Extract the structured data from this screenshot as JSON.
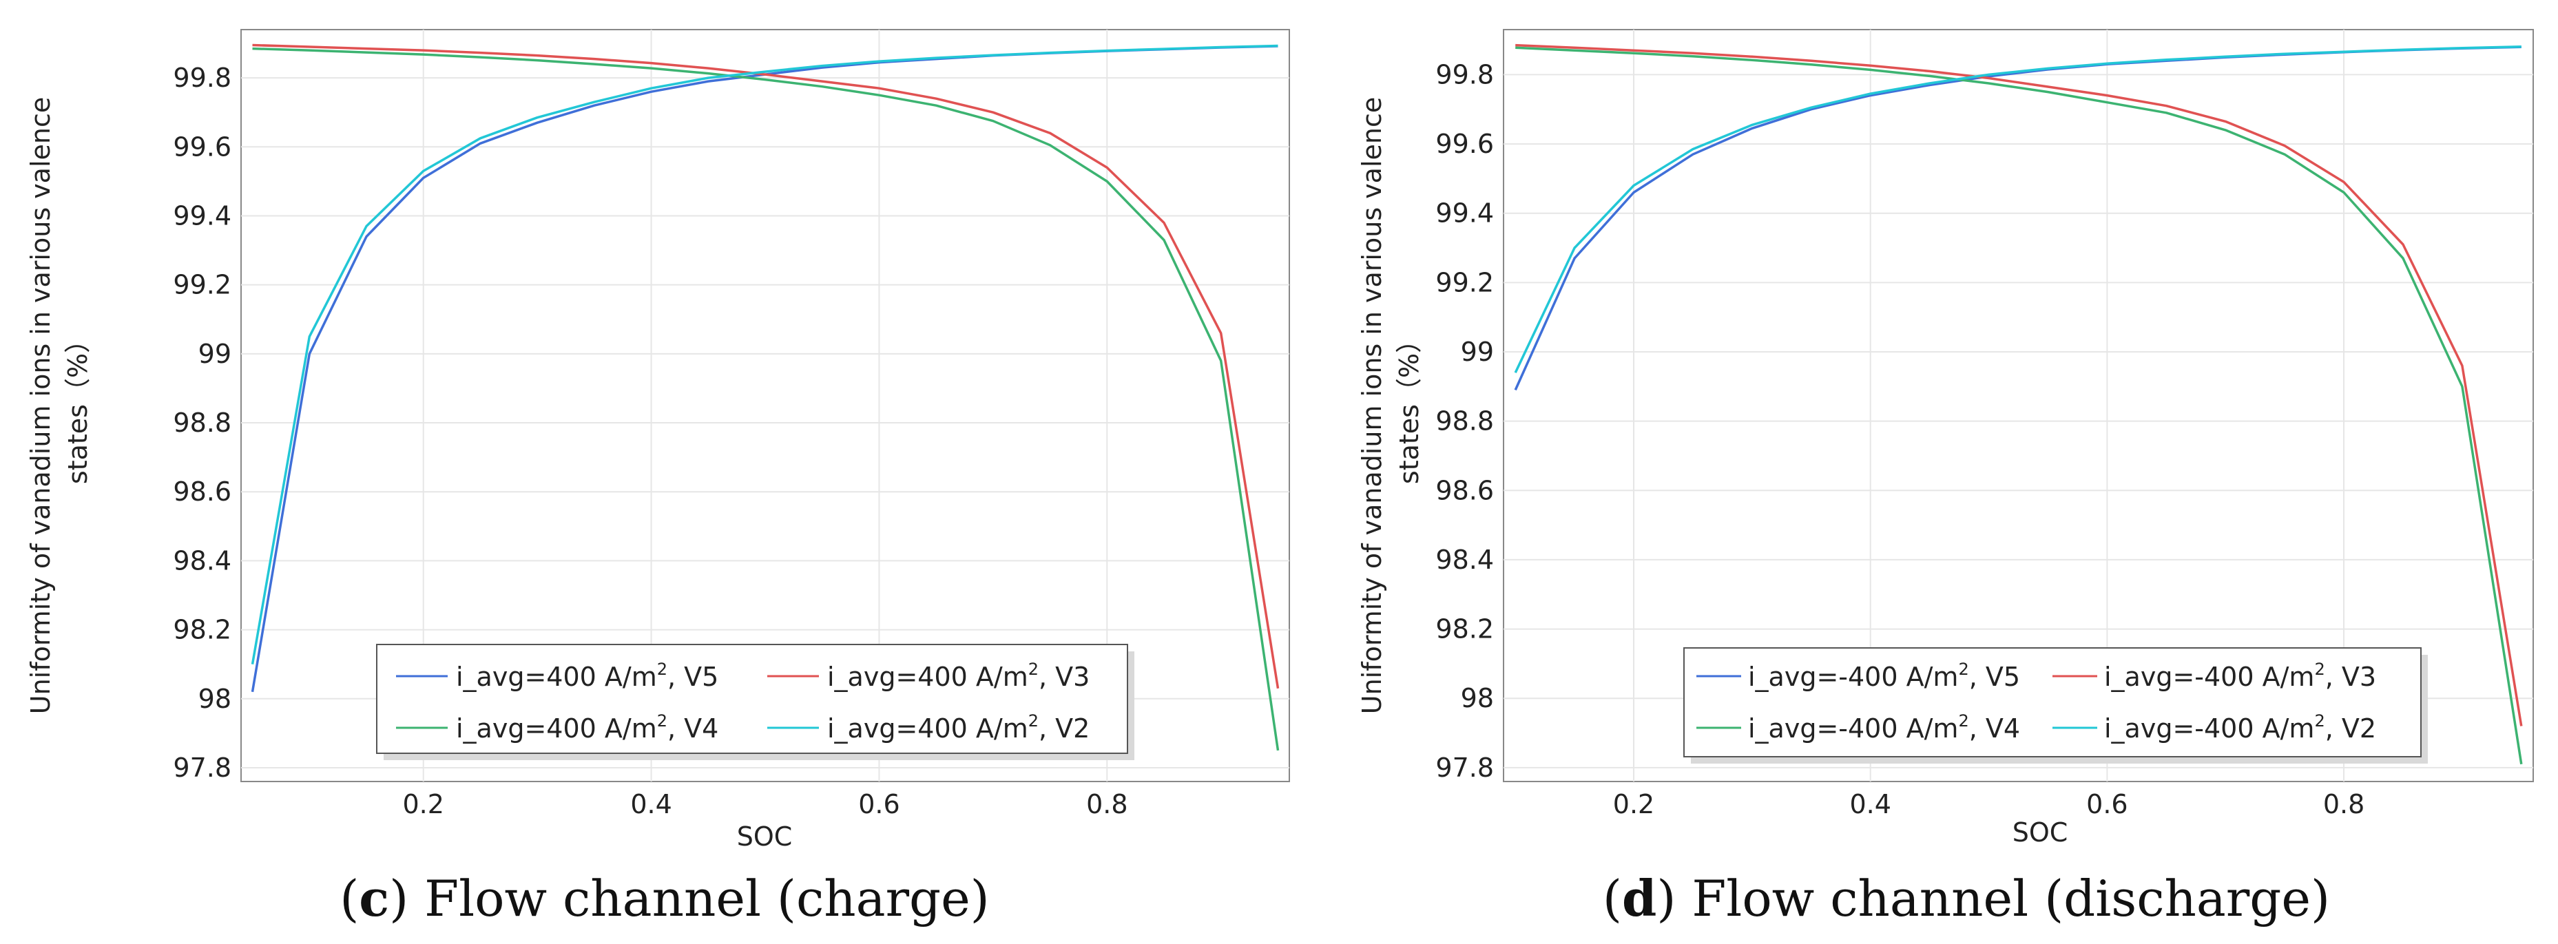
{
  "chart_data": [
    {
      "type": "line",
      "panel_letter": "c",
      "caption_text": " Flow channel (charge)",
      "caption_open": "(",
      "caption_close": ")",
      "xlabel": "SOC",
      "ylabel_line1": "Uniformity of vanadium ions in various valence",
      "ylabel_line2": "states（%）",
      "xlim": [
        0.04,
        0.96
      ],
      "ylim": [
        97.76,
        99.94
      ],
      "x_ticks": [
        0.2,
        0.4,
        0.6,
        0.8
      ],
      "x_tick_labels": [
        "0.2",
        "0.4",
        "0.6",
        "0.8"
      ],
      "y_ticks": [
        97.8,
        98,
        98.2,
        98.4,
        98.6,
        98.8,
        99,
        99.2,
        99.4,
        99.6,
        99.8
      ],
      "y_tick_labels": [
        "97.8",
        "98",
        "98.2",
        "98.4",
        "98.6",
        "98.8",
        "99",
        "99.2",
        "99.4",
        "99.6",
        "99.8"
      ],
      "grid": true,
      "x": [
        0.05,
        0.1,
        0.15,
        0.2,
        0.25,
        0.3,
        0.35,
        0.4,
        0.45,
        0.5,
        0.55,
        0.6,
        0.65,
        0.7,
        0.75,
        0.8,
        0.85,
        0.9,
        0.95
      ],
      "series": [
        {
          "name_prefix": "i_avg=400 A/m",
          "name_sup": "2",
          "name_suffix": ", V5",
          "color": "#3f6fd8",
          "values": [
            98.02,
            99.0,
            99.34,
            99.51,
            99.61,
            99.67,
            99.72,
            99.76,
            99.79,
            99.81,
            99.83,
            99.845,
            99.855,
            99.865,
            99.872,
            99.878,
            99.883,
            99.888,
            99.892
          ]
        },
        {
          "name_prefix": "i_avg=400 A/m",
          "name_sup": "2",
          "name_suffix": ", V3",
          "color": "#e05252",
          "values": [
            99.895,
            99.89,
            99.885,
            99.88,
            99.873,
            99.865,
            99.855,
            99.843,
            99.828,
            99.81,
            99.79,
            99.77,
            99.74,
            99.7,
            99.64,
            99.54,
            99.38,
            99.06,
            98.03
          ]
        },
        {
          "name_prefix": "i_avg=400 A/m",
          "name_sup": "2",
          "name_suffix": ", V4",
          "color": "#3cb371",
          "values": [
            99.885,
            99.88,
            99.874,
            99.868,
            99.86,
            99.851,
            99.84,
            99.828,
            99.813,
            99.795,
            99.775,
            99.75,
            99.72,
            99.675,
            99.605,
            99.5,
            99.33,
            98.98,
            97.85
          ]
        },
        {
          "name_prefix": "i_avg=400 A/m",
          "name_sup": "2",
          "name_suffix": ", V2",
          "color": "#22c7d6",
          "values": [
            98.1,
            99.05,
            99.37,
            99.53,
            99.625,
            99.685,
            99.73,
            99.77,
            99.8,
            99.818,
            99.835,
            99.848,
            99.858,
            99.866,
            99.873,
            99.879,
            99.884,
            99.889,
            99.893
          ]
        }
      ]
    },
    {
      "type": "line",
      "panel_letter": "d",
      "caption_text": " Flow channel (discharge)",
      "caption_open": "(",
      "caption_close": ")",
      "xlabel": "SOC",
      "ylabel_line1": "Uniformity of vanadium ions in various valence",
      "ylabel_line2": "states（%）",
      "xlim": [
        0.09,
        0.96
      ],
      "ylim": [
        97.76,
        99.93
      ],
      "x_ticks": [
        0.2,
        0.4,
        0.6,
        0.8
      ],
      "x_tick_labels": [
        "0.2",
        "0.4",
        "0.6",
        "0.8"
      ],
      "y_ticks": [
        97.8,
        98,
        98.2,
        98.4,
        98.6,
        98.8,
        99,
        99.2,
        99.4,
        99.6,
        99.8
      ],
      "y_tick_labels": [
        "97.8",
        "98",
        "98.2",
        "98.4",
        "98.6",
        "98.8",
        "99",
        "99.2",
        "99.4",
        "99.6",
        "99.8"
      ],
      "grid": true,
      "x": [
        0.1,
        0.15,
        0.2,
        0.25,
        0.3,
        0.35,
        0.4,
        0.45,
        0.5,
        0.55,
        0.6,
        0.65,
        0.7,
        0.75,
        0.8,
        0.85,
        0.9,
        0.95
      ],
      "series": [
        {
          "name_prefix": "i_avg=-400 A/m",
          "name_sup": "2",
          "name_suffix": ", V5",
          "color": "#3f6fd8",
          "values": [
            98.89,
            99.27,
            99.46,
            99.57,
            99.645,
            99.7,
            99.74,
            99.77,
            99.795,
            99.815,
            99.83,
            99.84,
            99.85,
            99.858,
            99.865,
            99.871,
            99.876,
            99.88
          ]
        },
        {
          "name_prefix": "i_avg=-400 A/m",
          "name_sup": "2",
          "name_suffix": ", V3",
          "color": "#e05252",
          "values": [
            99.885,
            99.878,
            99.87,
            99.862,
            99.852,
            99.84,
            99.826,
            99.81,
            99.79,
            99.765,
            99.74,
            99.71,
            99.665,
            99.595,
            99.49,
            99.31,
            98.96,
            97.92
          ]
        },
        {
          "name_prefix": "i_avg=-400 A/m",
          "name_sup": "2",
          "name_suffix": ", V4",
          "color": "#3cb371",
          "values": [
            99.878,
            99.87,
            99.862,
            99.853,
            99.842,
            99.829,
            99.814,
            99.796,
            99.775,
            99.75,
            99.72,
            99.69,
            99.64,
            99.57,
            99.46,
            99.27,
            98.9,
            97.81
          ]
        },
        {
          "name_prefix": "i_avg=-400 A/m",
          "name_sup": "2",
          "name_suffix": ", V2",
          "color": "#22c7d6",
          "values": [
            98.94,
            99.3,
            99.48,
            99.585,
            99.655,
            99.705,
            99.745,
            99.775,
            99.8,
            99.818,
            99.832,
            99.843,
            99.852,
            99.86,
            99.866,
            99.872,
            99.877,
            99.881
          ]
        }
      ]
    }
  ]
}
